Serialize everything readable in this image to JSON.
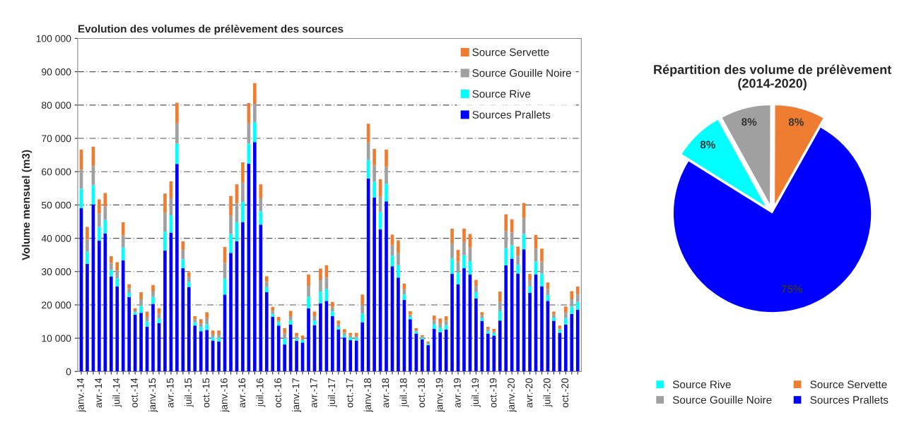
{
  "chart_data": [
    {
      "type": "bar",
      "title": "Evolution des volumes de prélèvement des sources",
      "ylabel": "Volume mensuel (m3)",
      "stacked": true,
      "grid": "y",
      "legend": "top right",
      "categories": [
        "janv.-14",
        null,
        null,
        "avr.-14",
        null,
        null,
        "juil.-14",
        null,
        null,
        "oct.-14",
        null,
        null,
        "janv.-15",
        null,
        null,
        "avr.-15",
        null,
        null,
        "juil.-15",
        null,
        null,
        "oct.-15",
        null,
        null,
        "janv.-16",
        null,
        null,
        "avr.-16",
        null,
        null,
        "juil.-16",
        null,
        null,
        "oct.-16",
        null,
        null,
        "janv.-17",
        null,
        null,
        "avr.-17",
        null,
        null,
        "juil.-17",
        null,
        null,
        "oct.-17",
        null,
        null,
        "janv.-18",
        null,
        null,
        "avr.-18",
        null,
        null,
        "juil.-18",
        null,
        null,
        "oct.-18",
        null,
        null,
        "janv.-19",
        null,
        null,
        "avr.-19",
        null,
        null,
        "juil.-19",
        null,
        null,
        "oct.-19",
        null,
        null,
        "janv.-20",
        null,
        null,
        "avr.-20",
        null,
        null,
        "juil.-20",
        null,
        null,
        "oct.-20",
        null,
        null
      ],
      "ylim": [
        0,
        100000
      ],
      "yticks": [
        0,
        {
          "value": 10000,
          "label": "10 000"
        },
        {
          "value": 20000,
          "label": "20 000"
        },
        {
          "value": 30000,
          "label": "30 000"
        },
        {
          "value": 40000,
          "label": "40 000"
        },
        {
          "value": 50000,
          "label": "50 000"
        },
        {
          "value": 60000,
          "label": "60 000"
        },
        {
          "value": 70000,
          "label": "70 000"
        },
        {
          "value": 80000,
          "label": "80 000"
        },
        {
          "value": 90000,
          "label": "90 000"
        },
        {
          "value": 100000,
          "label": "100 000"
        }
      ],
      "series": [
        {
          "name": "Sources Prallets",
          "color": "#0000ff",
          "values": [
            49000,
            32300,
            50200,
            39300,
            41500,
            28600,
            25500,
            33400,
            22400,
            17100,
            17600,
            13400,
            20300,
            14500,
            36300,
            41700,
            62300,
            31000,
            25400,
            13800,
            12100,
            12500,
            9300,
            9000,
            23100,
            35600,
            39100,
            44900,
            62400,
            68900,
            44100,
            23800,
            16400,
            13800,
            8100,
            14100,
            9200,
            8700,
            19000,
            13900,
            20500,
            21200,
            16600,
            12600,
            10200,
            9400,
            9300,
            14800,
            58000,
            52200,
            42700,
            51100,
            31600,
            28200,
            21500,
            15700,
            11400,
            9700,
            7900,
            12800,
            11800,
            12600,
            29300,
            26200,
            31000,
            29100,
            21900,
            15200,
            11400,
            10800,
            15300,
            31900,
            33900,
            29400,
            36700,
            23600,
            29100,
            25600,
            21200,
            15200,
            11600,
            14100,
            17300,
            18500
          ]
        },
        {
          "name": "Source Rive",
          "color": "#00ffff",
          "values": [
            5900,
            3700,
            5700,
            4100,
            4000,
            1900,
            2500,
            3800,
            1200,
            700,
            2100,
            1600,
            2100,
            1400,
            5700,
            5200,
            6100,
            2700,
            1500,
            1000,
            1300,
            1700,
            900,
            1100,
            4800,
            5700,
            5700,
            6000,
            6000,
            5900,
            4000,
            1600,
            900,
            1000,
            1800,
            1300,
            700,
            700,
            3400,
            1400,
            3500,
            3500,
            1400,
            800,
            700,
            800,
            800,
            2600,
            5500,
            4800,
            5100,
            5200,
            3200,
            3700,
            1600,
            700,
            600,
            400,
            400,
            1300,
            1400,
            1300,
            4600,
            3400,
            3900,
            4000,
            1900,
            800,
            700,
            700,
            2800,
            5100,
            4000,
            2700,
            4600,
            1900,
            3900,
            3800,
            1700,
            1000,
            900,
            1900,
            2200,
            2400
          ]
        },
        {
          "name": "Source Gouille Noire",
          "color": "#a0a0a0",
          "values": [
            5700,
            3600,
            5800,
            4100,
            4100,
            2100,
            2300,
            3700,
            1400,
            500,
            2000,
            1400,
            1600,
            1400,
            5600,
            5100,
            6100,
            2800,
            1400,
            900,
            1100,
            1800,
            900,
            1000,
            4700,
            5600,
            5600,
            5900,
            6100,
            5600,
            3900,
            1500,
            900,
            500,
            1500,
            1200,
            700,
            500,
            3300,
            1300,
            3400,
            3500,
            1400,
            800,
            700,
            600,
            500,
            2700,
            5300,
            4900,
            4700,
            5200,
            3100,
            3700,
            1600,
            700,
            300,
            300,
            300,
            1300,
            1300,
            1300,
            4500,
            3400,
            4000,
            4100,
            1900,
            900,
            600,
            500,
            2800,
            5200,
            3800,
            2700,
            4800,
            1900,
            3900,
            3600,
            1900,
            900,
            400,
            1600,
            2200,
            2200
          ]
        },
        {
          "name": "Source Servette",
          "color": "#ee7d31",
          "values": [
            6000,
            3800,
            5800,
            4200,
            4000,
            2000,
            2500,
            3900,
            1200,
            700,
            2100,
            1600,
            2000,
            1700,
            5800,
            5100,
            6200,
            2600,
            1500,
            900,
            1200,
            1800,
            1200,
            1200,
            4800,
            5800,
            5800,
            6000,
            6100,
            6200,
            4200,
            1700,
            1200,
            1100,
            1600,
            1600,
            1000,
            900,
            3400,
            1400,
            3500,
            3700,
            1500,
            1100,
            1100,
            800,
            1000,
            3000,
            5600,
            4900,
            5200,
            5100,
            3200,
            3800,
            1700,
            1000,
            700,
            500,
            400,
            1400,
            1400,
            1400,
            4500,
            3500,
            4000,
            4100,
            1800,
            900,
            700,
            800,
            3100,
            5000,
            4000,
            2700,
            4500,
            1900,
            4100,
            3900,
            1900,
            900,
            900,
            1900,
            2400,
            2400
          ]
        }
      ]
    },
    {
      "type": "pie",
      "title": "Répartition des volume de prélèvement (2014-2020)",
      "legend": "bottom",
      "categories": [
        "Source Rive",
        "Source Gouille Noire",
        "Source Servette",
        "Sources Prallets"
      ],
      "values": [
        8,
        8,
        8,
        75
      ],
      "colors": [
        "#00ffff",
        "#a0a0a0",
        "#ee7d31",
        "#0000ff"
      ],
      "value_labels": [
        "8%",
        "8%",
        "8%",
        "75%"
      ]
    }
  ]
}
